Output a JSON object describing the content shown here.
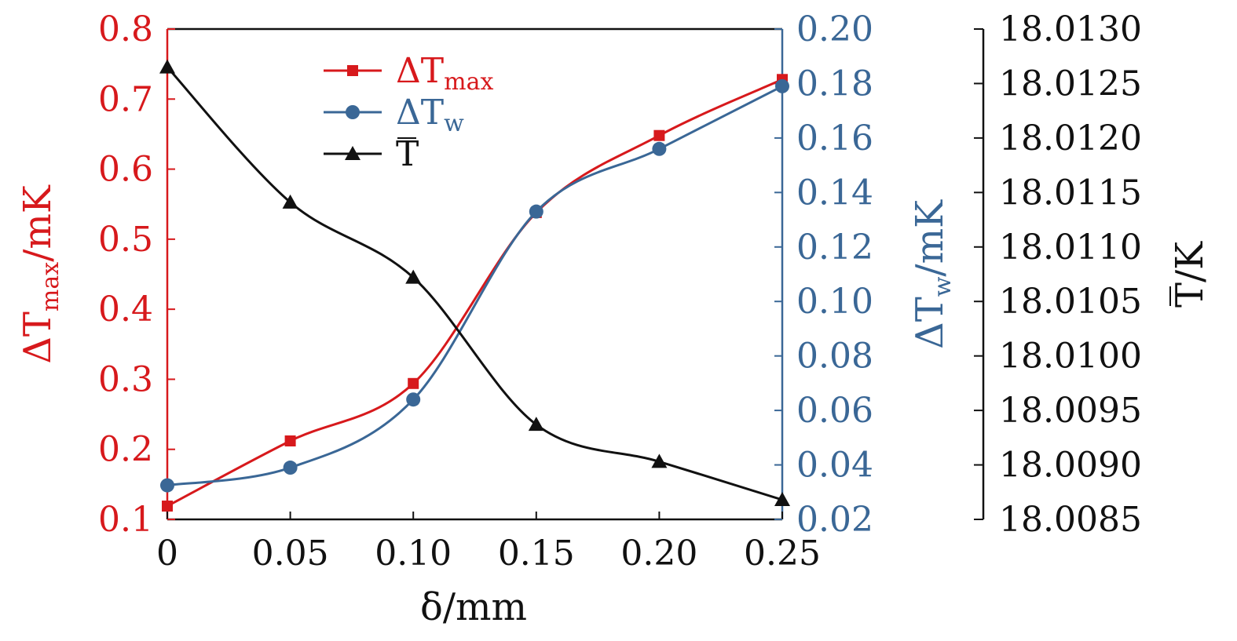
{
  "chart_data": {
    "type": "line",
    "xlabel": "δ/mm",
    "x": [
      0,
      0.05,
      0.1,
      0.15,
      0.2,
      0.25
    ],
    "x_tick_labels": [
      "0",
      "0.05",
      "0.10",
      "0.15",
      "0.20",
      "0.25"
    ],
    "xlim": [
      0,
      0.25
    ],
    "axes": {
      "left": {
        "label_main": "ΔT",
        "label_sub": "max",
        "label_tail": "/mK",
        "color": "#d7191c",
        "ylim": [
          0.1,
          0.8
        ],
        "ticks": [
          0.1,
          0.2,
          0.3,
          0.4,
          0.5,
          0.6,
          0.7,
          0.8
        ],
        "tick_labels": [
          "0.1",
          "0.2",
          "0.3",
          "0.4",
          "0.5",
          "0.6",
          "0.7",
          "0.8"
        ]
      },
      "right": {
        "label_main": "ΔT",
        "label_sub": "w",
        "label_tail": "/mK",
        "color": "#3a6796",
        "ylim": [
          0.02,
          0.2
        ],
        "ticks": [
          0.02,
          0.04,
          0.06,
          0.08,
          0.1,
          0.12,
          0.14,
          0.16,
          0.18,
          0.2
        ],
        "tick_labels": [
          "0.02",
          "0.04",
          "0.06",
          "0.08",
          "0.10",
          "0.12",
          "0.14",
          "0.16",
          "0.18",
          "0.20"
        ]
      },
      "far_right": {
        "label_main": "T",
        "label_tail": "/K",
        "color": "#111111",
        "ylim": [
          18.0085,
          18.013
        ],
        "ticks": [
          18.0085,
          18.009,
          18.0095,
          18.01,
          18.0105,
          18.011,
          18.0115,
          18.012,
          18.0125,
          18.013
        ],
        "tick_labels": [
          "18.0085",
          "18.0090",
          "18.0095",
          "18.0100",
          "18.0105",
          "18.0110",
          "18.0115",
          "18.0120",
          "18.0125",
          "18.0130"
        ]
      }
    },
    "series": [
      {
        "name": "ΔTmax",
        "legend_main": "ΔT",
        "legend_sub": "max",
        "axis": "left",
        "color": "#d7191c",
        "marker": "square",
        "values": [
          0.119,
          0.212,
          0.294,
          0.538,
          0.648,
          0.728
        ]
      },
      {
        "name": "ΔTw",
        "legend_main": "ΔT",
        "legend_sub": "w",
        "axis": "right",
        "color": "#3a6796",
        "marker": "circle",
        "values": [
          0.0325,
          0.039,
          0.064,
          0.133,
          0.156,
          0.179
        ]
      },
      {
        "name": "T",
        "legend_main": "T",
        "legend_sub": "",
        "axis": "far_right",
        "color": "#111111",
        "marker": "triangle",
        "values": [
          18.01265,
          18.01141,
          18.01072,
          18.00937,
          18.00903,
          18.00868
        ]
      }
    ],
    "legend_position": "top-left",
    "grid": false
  }
}
